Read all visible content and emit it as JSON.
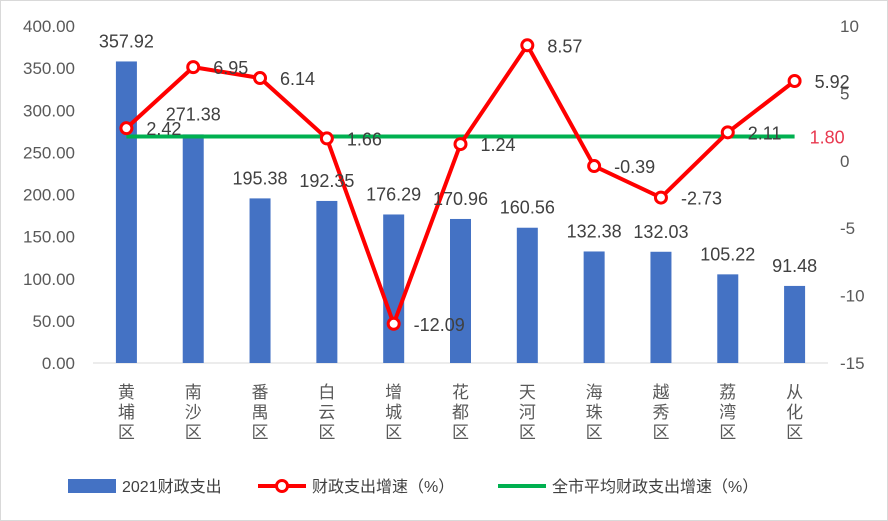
{
  "chart_data": {
    "type": "bar",
    "categories": [
      "黄埔区",
      "南沙区",
      "番禺区",
      "白云区",
      "增城区",
      "花都区",
      "天河区",
      "海珠区",
      "越秀区",
      "荔湾区",
      "从化区"
    ],
    "series": [
      {
        "name": "2021财政支出",
        "type": "bar",
        "axis": "left",
        "color": "#4472C4",
        "values": [
          357.92,
          271.38,
          195.38,
          192.35,
          176.29,
          170.96,
          160.56,
          132.38,
          132.03,
          105.22,
          91.48
        ],
        "labels": [
          "357.92",
          "271.38",
          "195.38",
          "192.35",
          "176.29",
          "170.96",
          "160.56",
          "132.38",
          "132.03",
          "105.22",
          "91.48"
        ]
      },
      {
        "name": "财政支出增速（%）",
        "type": "line",
        "axis": "right",
        "color": "#FF0000",
        "values": [
          2.42,
          6.95,
          6.14,
          1.66,
          -12.09,
          1.24,
          8.57,
          -0.39,
          -2.73,
          2.11,
          5.92
        ],
        "labels": [
          "2.42",
          "6.95",
          "6.14",
          "1.66",
          "-12.09",
          "1.24",
          "8.57",
          "-0.39",
          "-2.73",
          "2.11",
          "5.92"
        ]
      },
      {
        "name": "全市平均财政支出增速（%）",
        "type": "line",
        "axis": "right",
        "color": "#00B050",
        "value": 1.8,
        "label": "1.80",
        "label_color": "#E8384F"
      }
    ],
    "y_left": {
      "lim": [
        0,
        400
      ],
      "ticks": [
        "0.00",
        "50.00",
        "100.00",
        "150.00",
        "200.00",
        "250.00",
        "300.00",
        "350.00",
        "400.00"
      ]
    },
    "y_right": {
      "lim": [
        -15,
        10
      ],
      "ticks": [
        "-15",
        "-10",
        "-5",
        "0",
        "5",
        "10"
      ]
    },
    "grid": false,
    "legend_position": "bottom"
  }
}
